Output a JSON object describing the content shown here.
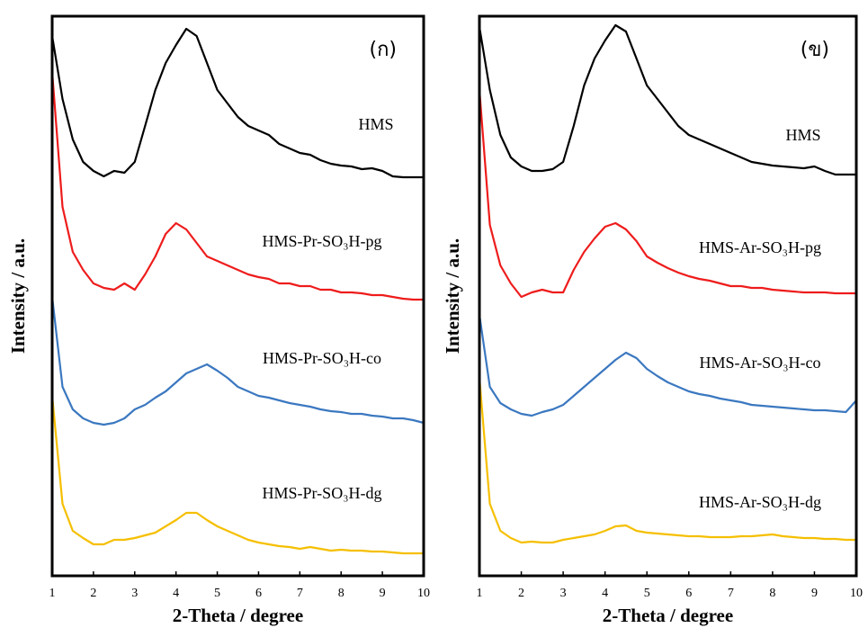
{
  "chart_data": [
    {
      "type": "line",
      "annotation": "(ก)",
      "x_label": "2-Theta / degree",
      "y_label": "Intensity / a.u.",
      "x": [
        1,
        1.25,
        1.5,
        1.75,
        2,
        2.25,
        2.5,
        2.75,
        3,
        3.25,
        3.5,
        3.75,
        4,
        4.25,
        4.5,
        4.75,
        5,
        5.25,
        5.5,
        5.75,
        6,
        6.25,
        6.5,
        6.75,
        7,
        7.25,
        7.5,
        7.75,
        8,
        8.25,
        8.5,
        8.75,
        9,
        9.25,
        9.5,
        9.75,
        10
      ],
      "xlim": [
        1,
        10
      ],
      "xticks": [
        1,
        2,
        3,
        4,
        5,
        6,
        7,
        8,
        9,
        10
      ],
      "ylim": [
        0,
        622
      ],
      "series": [
        {
          "name": "HMS",
          "color": "#000000",
          "values": [
            600,
            530,
            485,
            460,
            450,
            444,
            450,
            448,
            460,
            500,
            540,
            570,
            590,
            608,
            600,
            570,
            540,
            525,
            510,
            500,
            495,
            490,
            480,
            475,
            470,
            468,
            462,
            458,
            456,
            455,
            452,
            453,
            450,
            444,
            443,
            443,
            443
          ]
        },
        {
          "name": "HMS-Pr-SO₃H-pg",
          "color": "#ee1c1c",
          "values": [
            560,
            410,
            360,
            340,
            325,
            320,
            318,
            325,
            318,
            335,
            355,
            380,
            392,
            385,
            370,
            355,
            350,
            345,
            340,
            335,
            332,
            330,
            325,
            325,
            322,
            322,
            318,
            318,
            315,
            315,
            314,
            312,
            312,
            310,
            308,
            307,
            307
          ]
        },
        {
          "name": "HMS-Pr-SO₃H-co",
          "color": "#3b78c0",
          "values": [
            310,
            210,
            185,
            175,
            170,
            168,
            170,
            175,
            185,
            190,
            198,
            205,
            215,
            225,
            230,
            235,
            228,
            220,
            210,
            205,
            200,
            198,
            195,
            192,
            190,
            188,
            185,
            183,
            182,
            180,
            180,
            178,
            177,
            175,
            175,
            173,
            170
          ]
        },
        {
          "name": "HMS-Pr-SO₃H-dg",
          "color": "#f5bf00",
          "values": [
            200,
            80,
            50,
            42,
            35,
            35,
            40,
            40,
            42,
            45,
            48,
            55,
            62,
            70,
            70,
            62,
            55,
            50,
            45,
            40,
            37,
            35,
            33,
            32,
            30,
            32,
            30,
            28,
            29,
            28,
            28,
            27,
            27,
            26,
            25,
            25,
            25
          ]
        }
      ]
    },
    {
      "type": "line",
      "annotation": "(ข)",
      "x_label": "2-Theta / degree",
      "y_label": "Intensity / a.u.",
      "x": [
        1,
        1.25,
        1.5,
        1.75,
        2,
        2.25,
        2.5,
        2.75,
        3,
        3.25,
        3.5,
        3.75,
        4,
        4.25,
        4.5,
        4.75,
        5,
        5.25,
        5.5,
        5.75,
        6,
        6.25,
        6.5,
        6.75,
        7,
        7.25,
        7.5,
        7.75,
        8,
        8.25,
        8.5,
        8.75,
        9,
        9.25,
        9.5,
        9.75,
        10
      ],
      "xlim": [
        1,
        10
      ],
      "xticks": [
        1,
        2,
        3,
        4,
        5,
        6,
        7,
        8,
        9,
        10
      ],
      "ylim": [
        0,
        622
      ],
      "series": [
        {
          "name": "HMS",
          "color": "#000000",
          "values": [
            610,
            540,
            490,
            465,
            455,
            450,
            450,
            452,
            460,
            500,
            545,
            575,
            595,
            612,
            605,
            575,
            545,
            530,
            515,
            500,
            490,
            485,
            480,
            475,
            470,
            465,
            460,
            458,
            456,
            455,
            454,
            453,
            455,
            450,
            446,
            446,
            446
          ]
        },
        {
          "name": "HMS-Ar-SO₃H-pg",
          "color": "#ee1c1c",
          "values": [
            540,
            390,
            345,
            325,
            310,
            315,
            318,
            315,
            315,
            340,
            360,
            375,
            388,
            392,
            385,
            372,
            355,
            348,
            342,
            337,
            333,
            330,
            328,
            325,
            322,
            322,
            320,
            320,
            318,
            317,
            316,
            315,
            315,
            315,
            314,
            314,
            314
          ]
        },
        {
          "name": "HMS-Ar-SO₃H-co",
          "color": "#3b78c0",
          "values": [
            290,
            210,
            192,
            185,
            180,
            178,
            182,
            185,
            190,
            200,
            210,
            220,
            230,
            240,
            248,
            242,
            230,
            222,
            215,
            210,
            205,
            202,
            200,
            197,
            195,
            193,
            190,
            189,
            188,
            187,
            186,
            185,
            184,
            184,
            183,
            182,
            195
          ]
        },
        {
          "name": "HMS-Ar-SO₃H-dg",
          "color": "#f5bf00",
          "values": [
            220,
            80,
            50,
            42,
            37,
            38,
            37,
            37,
            40,
            42,
            44,
            46,
            50,
            55,
            56,
            50,
            48,
            47,
            46,
            45,
            44,
            44,
            43,
            43,
            43,
            44,
            44,
            45,
            46,
            44,
            43,
            42,
            42,
            41,
            41,
            40,
            40
          ]
        }
      ]
    }
  ]
}
